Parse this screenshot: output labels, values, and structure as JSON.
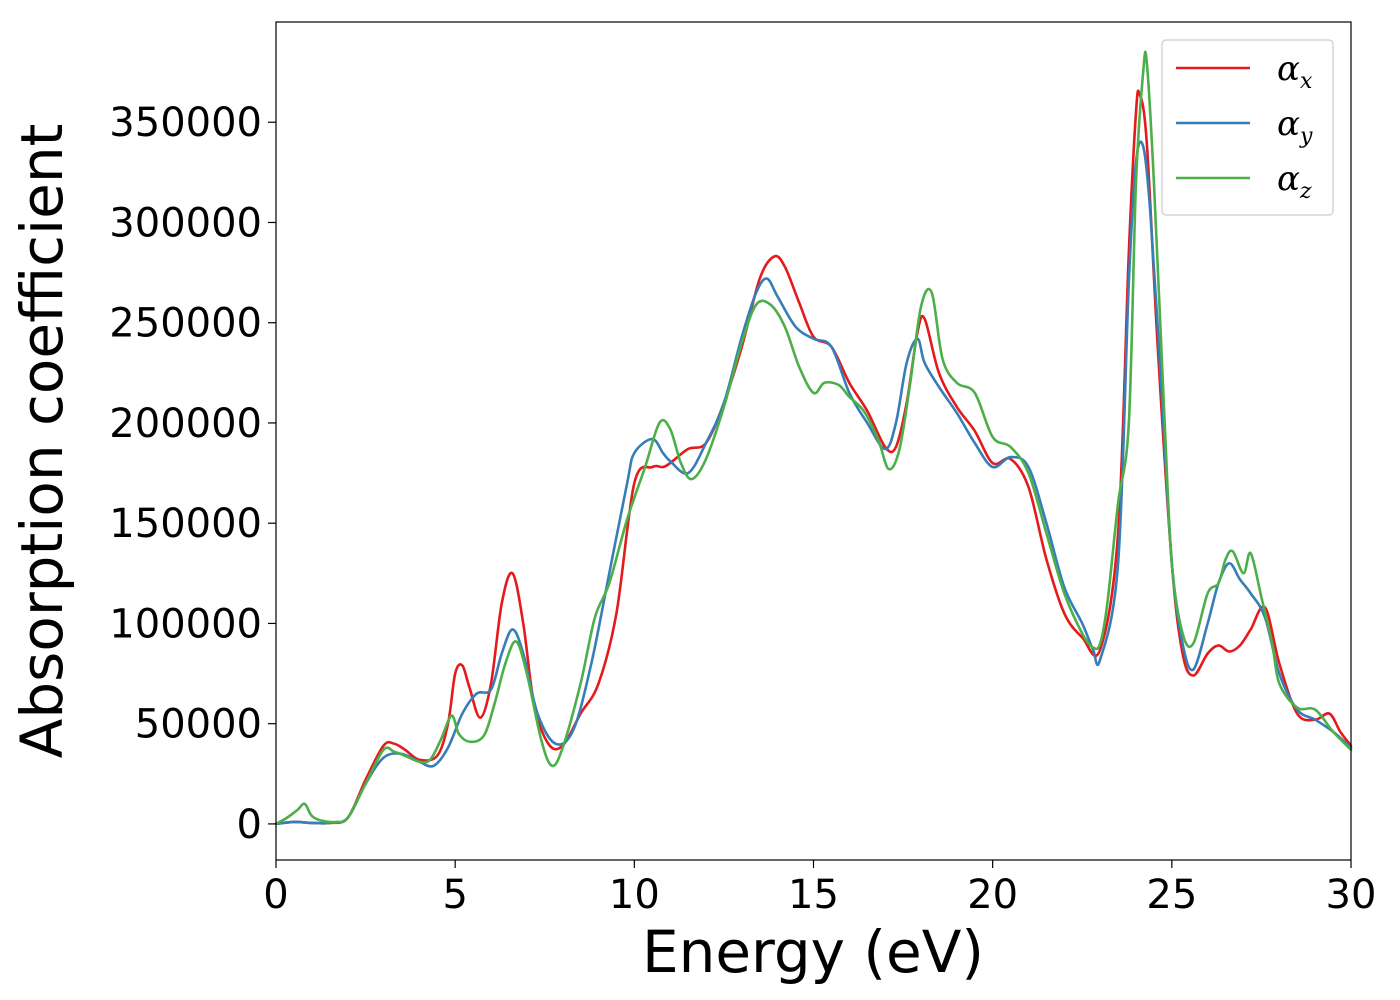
{
  "chart_data": {
    "type": "line",
    "xlabel": "Energy (eV)",
    "ylabel": "Absorption coefficient",
    "xlim": [
      0,
      30
    ],
    "ylim": [
      -18000,
      400000
    ],
    "xticks": [
      0,
      5,
      10,
      15,
      20,
      25,
      30
    ],
    "xtick_labels": [
      "0",
      "5",
      "10",
      "15",
      "20",
      "25",
      "30"
    ],
    "yticks": [
      0,
      50000,
      100000,
      150000,
      200000,
      250000,
      300000,
      350000
    ],
    "ytick_labels": [
      "0",
      "50000",
      "100000",
      "150000",
      "200000",
      "250000",
      "300000",
      "350000"
    ],
    "grid": false,
    "legend_position": "top-right",
    "series": [
      {
        "name": "αx",
        "symbol": "α",
        "subscript": "x",
        "color": "#e41a1c",
        "x": [
          0,
          0.5,
          1,
          1.5,
          2,
          2.5,
          3,
          3.3,
          3.6,
          4,
          4.5,
          4.8,
          5,
          5.2,
          5.4,
          5.7,
          6,
          6.3,
          6.6,
          6.9,
          7.2,
          7.6,
          8,
          8.5,
          9,
          9.5,
          10,
          10.5,
          10.8,
          11,
          11.5,
          12,
          12.5,
          13,
          13.5,
          13.9,
          14.2,
          14.6,
          15,
          15.5,
          16,
          16.5,
          17,
          17.3,
          17.6,
          17.9,
          18.1,
          18.5,
          19,
          19.5,
          20,
          20.5,
          21,
          21.5,
          22,
          22.5,
          23,
          23.5,
          23.8,
          24,
          24.1,
          24.3,
          24.6,
          25,
          25.3,
          25.6,
          26,
          26.3,
          26.6,
          26.9,
          27.2,
          27.6,
          28,
          28.5,
          29,
          29.4,
          29.7,
          30
        ],
        "y": [
          0,
          1000,
          500,
          500,
          3000,
          22000,
          39000,
          40000,
          37000,
          32000,
          34000,
          50000,
          75000,
          79000,
          68000,
          53000,
          70000,
          110000,
          125000,
          100000,
          60000,
          40000,
          39000,
          55000,
          70000,
          105000,
          170000,
          178000,
          178000,
          180000,
          187000,
          190000,
          210000,
          238000,
          272000,
          283000,
          278000,
          260000,
          243000,
          238000,
          220000,
          206000,
          188000,
          188000,
          210000,
          245000,
          252000,
          225000,
          208000,
          196000,
          180000,
          182000,
          168000,
          132000,
          105000,
          93000,
          87000,
          145000,
          285000,
          355000,
          364000,
          340000,
          240000,
          130000,
          85000,
          74000,
          85000,
          89000,
          86000,
          89000,
          97000,
          108000,
          80000,
          55000,
          52000,
          55000,
          46000,
          39000
        ]
      },
      {
        "name": "αy",
        "symbol": "α",
        "subscript": "y",
        "color": "#377eb8",
        "x": [
          0,
          0.5,
          1,
          1.5,
          2,
          2.5,
          3,
          3.5,
          4,
          4.4,
          4.8,
          5.2,
          5.6,
          6,
          6.3,
          6.6,
          6.9,
          7.3,
          7.8,
          8.3,
          8.8,
          9.3,
          9.8,
          10,
          10.5,
          10.8,
          11,
          11.5,
          12,
          12.5,
          13,
          13.4,
          13.7,
          14,
          14.5,
          15,
          15.5,
          16,
          16.5,
          17,
          17.3,
          17.6,
          17.9,
          18.1,
          18.5,
          19,
          19.5,
          20,
          20.5,
          21,
          21.5,
          22,
          22.5,
          22.8,
          23,
          23.5,
          23.8,
          24,
          24.2,
          24.4,
          24.7,
          25,
          25.3,
          25.6,
          26,
          26.3,
          26.6,
          26.9,
          27.2,
          27.6,
          28,
          28.5,
          29,
          29.5,
          30
        ],
        "y": [
          0,
          1000,
          500,
          500,
          3000,
          20000,
          33000,
          35000,
          31000,
          29000,
          38000,
          55000,
          65000,
          67000,
          85000,
          97000,
          85000,
          55000,
          40000,
          47000,
          80000,
          125000,
          170000,
          185000,
          192000,
          185000,
          181000,
          175000,
          190000,
          210000,
          243000,
          265000,
          272000,
          263000,
          248000,
          242000,
          238000,
          215000,
          200000,
          187000,
          200000,
          230000,
          242000,
          230000,
          218000,
          205000,
          190000,
          178000,
          183000,
          178000,
          150000,
          118000,
          100000,
          87000,
          82000,
          130000,
          270000,
          330000,
          338000,
          305000,
          220000,
          130000,
          90000,
          77000,
          100000,
          120000,
          130000,
          122000,
          115000,
          103000,
          75000,
          57000,
          52000,
          46000,
          38000
        ]
      },
      {
        "name": "αz",
        "symbol": "α",
        "subscript": "z",
        "color": "#4daf4a",
        "x": [
          0,
          0.3,
          0.6,
          0.8,
          1,
          1.3,
          1.7,
          2,
          2.5,
          3,
          3.3,
          3.6,
          4,
          4.3,
          4.6,
          4.9,
          5.1,
          5.4,
          5.8,
          6.1,
          6.4,
          6.7,
          7,
          7.4,
          7.7,
          8,
          8.5,
          8.9,
          9.3,
          9.8,
          10.3,
          10.7,
          11,
          11.3,
          11.6,
          12,
          12.5,
          13,
          13.4,
          13.8,
          14.2,
          14.6,
          15,
          15.3,
          15.7,
          16,
          16.4,
          16.8,
          17.1,
          17.4,
          17.7,
          18,
          18.3,
          18.6,
          19,
          19.5,
          20,
          20.5,
          21,
          21.5,
          22,
          22.5,
          22.8,
          23,
          23.2,
          23.5,
          23.8,
          24,
          24.2,
          24.3,
          24.5,
          24.8,
          25,
          25.3,
          25.6,
          26,
          26.3,
          26.5,
          26.7,
          27,
          27.2,
          27.5,
          27.8,
          28,
          28.5,
          29,
          29.5,
          30
        ],
        "y": [
          0,
          3000,
          7000,
          10000,
          4000,
          1500,
          1000,
          3000,
          20000,
          37000,
          36000,
          34000,
          31000,
          32000,
          42000,
          54000,
          45000,
          41000,
          44000,
          60000,
          80000,
          91000,
          75000,
          42000,
          29000,
          38000,
          70000,
          103000,
          120000,
          152000,
          178000,
          200000,
          197000,
          180000,
          172000,
          182000,
          208000,
          240000,
          259000,
          259000,
          248000,
          228000,
          215000,
          220000,
          219000,
          213000,
          206000,
          192000,
          177000,
          187000,
          220000,
          258000,
          265000,
          232000,
          220000,
          215000,
          193000,
          188000,
          175000,
          145000,
          115000,
          95000,
          88000,
          90000,
          110000,
          160000,
          200000,
          320000,
          375000,
          380000,
          320000,
          200000,
          130000,
          95000,
          90000,
          115000,
          120000,
          132000,
          136000,
          125000,
          135000,
          113000,
          90000,
          70000,
          58000,
          57000,
          46000,
          37000
        ]
      }
    ]
  }
}
